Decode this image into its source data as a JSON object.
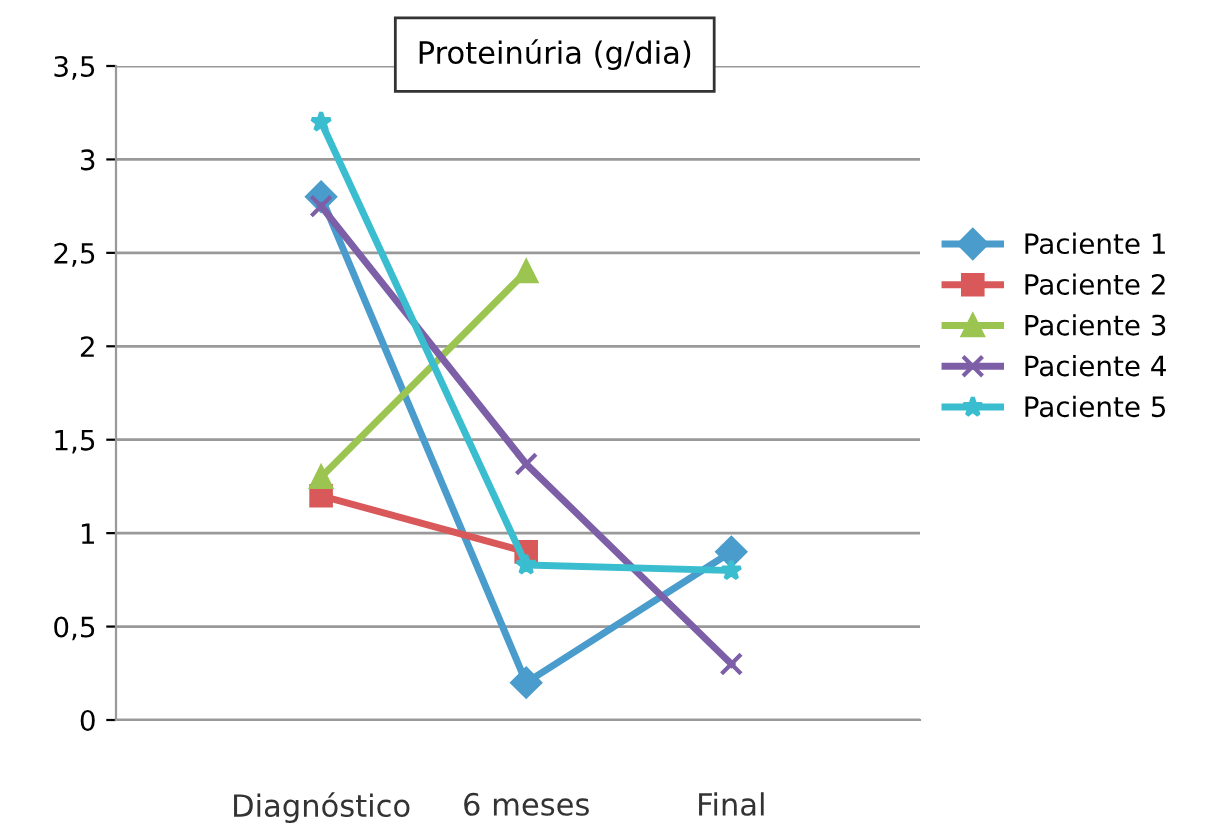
{
  "chart_data": {
    "type": "line",
    "title": "Proteinúria (g/dia)",
    "categories": [
      "Diagnóstico",
      "6 meses",
      "Final"
    ],
    "series": [
      {
        "name": "Paciente 1",
        "color": "#4a9ccc",
        "marker": "diamond",
        "values": [
          2.8,
          0.2,
          0.9
        ]
      },
      {
        "name": "Paciente 2",
        "color": "#d9595a",
        "marker": "square",
        "values": [
          1.2,
          0.9,
          null
        ]
      },
      {
        "name": "Paciente 3",
        "color": "#9bc550",
        "marker": "triangle",
        "values": [
          1.3,
          2.4,
          null
        ]
      },
      {
        "name": "Paciente 4",
        "color": "#7d5fa8",
        "marker": "cross",
        "values": [
          2.75,
          1.37,
          0.3
        ]
      },
      {
        "name": "Paciente 5",
        "color": "#3bbdd0",
        "marker": "star",
        "values": [
          3.2,
          0.83,
          0.8
        ]
      }
    ],
    "ylim": [
      0,
      3.5
    ],
    "yticks": [
      {
        "value": 0,
        "label": "0"
      },
      {
        "value": 0.5,
        "label": "0,5"
      },
      {
        "value": 1,
        "label": "1"
      },
      {
        "value": 1.5,
        "label": "1,5"
      },
      {
        "value": 2,
        "label": "2"
      },
      {
        "value": 2.5,
        "label": "2,5"
      },
      {
        "value": 3,
        "label": "3"
      },
      {
        "value": 3.5,
        "label": "3,5"
      }
    ],
    "grid": "y",
    "legend": "right"
  }
}
